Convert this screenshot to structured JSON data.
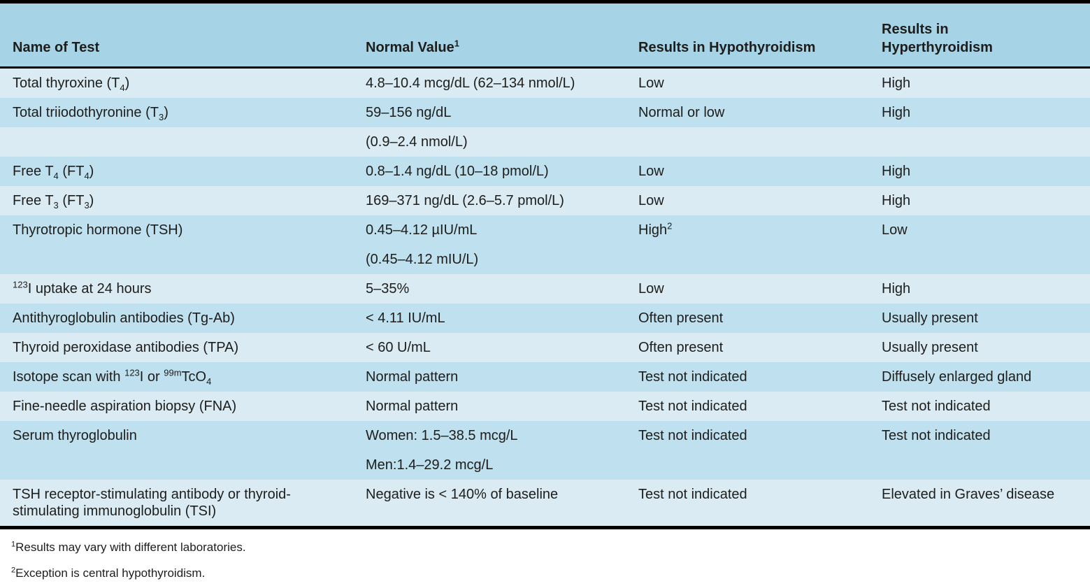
{
  "colors": {
    "header_bg": "#a7d3e6",
    "row_light": "#daebf3",
    "row_medium": "#bfe0ee",
    "border": "#000000",
    "text": "#1d1d1b",
    "page_bg": "#ffffff"
  },
  "table": {
    "columns": [
      {
        "id": "test_name",
        "label_html": "Name of Test"
      },
      {
        "id": "normal_value",
        "label_html": "Normal Value<sup>1</sup>"
      },
      {
        "id": "hypothyroidism",
        "label_html": "Results in Hypothyroidism"
      },
      {
        "id": "hyperthyroidism",
        "label_html": "Results in<br>Hyperthyroidism"
      }
    ],
    "rows": [
      {
        "cells": [
          "Total thyroxine (T<sub>4</sub>)",
          "4.8–10.4 mcg/dL (62–134 nmol/L)",
          "Low",
          "High"
        ]
      },
      {
        "cells": [
          "Total triiodothyronine (T<sub>3</sub>)",
          "59–156 ng/dL",
          "Normal or low",
          "High"
        ]
      },
      {
        "cells": [
          "",
          "(0.9–2.4 nmol/L)",
          "",
          ""
        ]
      },
      {
        "cells": [
          "Free T<sub>4</sub> (FT<sub>4</sub>)",
          "0.8–1.4 ng/dL (10–18 pmol/L)",
          "Low",
          "High"
        ]
      },
      {
        "cells": [
          "Free T<sub>3</sub> (FT<sub>3</sub>)",
          "169–371 ng/dL (2.6–5.7 pmol/L)",
          "Low",
          "High"
        ]
      },
      {
        "cells": [
          "Thyrotropic hormone (TSH)",
          "0.45–4.12 µIU/mL",
          "High<sup>2</sup>",
          "Low"
        ]
      },
      {
        "cells": [
          "",
          "(0.45–4.12 mIU/L)",
          "",
          ""
        ]
      },
      {
        "cells": [
          "<sup>123</sup>I uptake at 24 hours",
          "5–35%",
          "Low",
          "High"
        ]
      },
      {
        "cells": [
          "Antithyroglobulin antibodies (Tg-Ab)",
          "&lt; 4.11 IU/mL",
          "Often present",
          "Usually present"
        ]
      },
      {
        "cells": [
          "Thyroid peroxidase antibodies (TPA)",
          "&lt; 60 U/mL",
          "Often present",
          "Usually present"
        ]
      },
      {
        "cells": [
          "Isotope scan with <sup>123</sup>I or <sup>99m</sup>TcO<sub>4</sub>",
          "Normal pattern",
          "Test not indicated",
          "Diffusely enlarged gland"
        ]
      },
      {
        "cells": [
          "Fine-needle aspiration biopsy (FNA)",
          "Normal pattern",
          "Test not indicated",
          "Test not indicated"
        ]
      },
      {
        "cells": [
          "Serum thyroglobulin",
          "Women: 1.5–38.5 mcg/L",
          "Test not indicated",
          "Test not indicated"
        ]
      },
      {
        "cells": [
          "",
          "Men:1.4–29.2 mcg/L",
          "",
          ""
        ]
      },
      {
        "cells": [
          "TSH receptor-stimulating antibody or thyroid-stimulating immunoglobulin (TSI)",
          "Negative is &lt; 140% of baseline",
          "Test not indicated",
          "Elevated in Graves’ disease"
        ]
      }
    ]
  },
  "footnotes": [
    {
      "html": "<sup>1</sup>Results may vary with different laboratories."
    },
    {
      "html": "<sup>2</sup>Exception is central hypothyroidism."
    }
  ]
}
